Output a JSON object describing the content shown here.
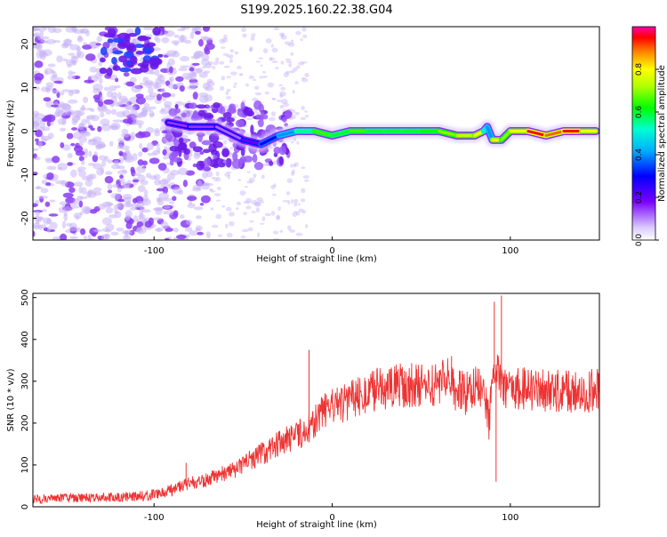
{
  "title": "S199.2025.160.22.38.G04",
  "chart_data": [
    {
      "type": "heatmap",
      "xlabel": "Height of straight line (km)",
      "ylabel": "Frequency (Hz)",
      "xlim": [
        -168,
        150
      ],
      "ylim": [
        -25,
        24
      ],
      "xticks": [
        -100,
        0,
        100
      ],
      "yticks": [
        -20,
        -10,
        0,
        10,
        20
      ],
      "colorbar": {
        "label": "Normalized spectral amplitude",
        "range": [
          0,
          1
        ],
        "ticks": [
          "0.0",
          "0.2",
          "0.4",
          "0.6",
          "0.8"
        ],
        "tick_values": [
          0,
          0.2,
          0.4,
          0.6,
          0.8
        ]
      },
      "ridge": {
        "x": [
          -92,
          -80,
          -65,
          -50,
          -40,
          -30,
          -20,
          -10,
          0,
          10,
          20,
          30,
          40,
          50,
          60,
          70,
          80,
          85,
          87,
          90,
          95,
          100,
          110,
          120,
          130,
          140,
          148
        ],
        "freq": [
          2,
          1,
          1,
          -2,
          -3,
          -1,
          0,
          0,
          -1,
          0,
          0,
          0,
          0,
          0,
          0,
          -1,
          -1,
          0,
          1,
          -2,
          -2,
          0,
          0,
          -1,
          0,
          0,
          0
        ],
        "amplitude": [
          0.15,
          0.15,
          0.12,
          0.2,
          0.3,
          0.4,
          0.55,
          0.65,
          0.6,
          0.65,
          0.6,
          0.6,
          0.6,
          0.62,
          0.7,
          0.75,
          0.8,
          0.5,
          0.4,
          0.8,
          0.7,
          0.8,
          0.95,
          0.9,
          0.95,
          0.8,
          0.6
        ]
      }
    },
    {
      "type": "line",
      "xlabel": "Height of straight line (km)",
      "ylabel": "SNR (10 * v/v)",
      "xlim": [
        -168,
        150
      ],
      "ylim": [
        0,
        510
      ],
      "xticks": [
        -100,
        0,
        100
      ],
      "yticks": [
        0,
        100,
        200,
        300,
        400,
        500
      ],
      "series": [
        {
          "color": "#ee3333",
          "x": [
            -168,
            -150,
            -130,
            -110,
            -100,
            -90,
            -80,
            -70,
            -60,
            -50,
            -40,
            -30,
            -20,
            -15,
            -10,
            -5,
            0,
            5,
            10,
            20,
            30,
            40,
            50,
            60,
            65,
            70,
            75,
            80,
            85,
            88,
            90,
            92,
            94,
            96,
            100,
            110,
            120,
            130,
            140,
            150
          ],
          "y": [
            18,
            20,
            22,
            24,
            30,
            40,
            55,
            65,
            80,
            100,
            125,
            150,
            170,
            180,
            200,
            225,
            240,
            245,
            255,
            275,
            285,
            290,
            290,
            295,
            300,
            280,
            270,
            290,
            290,
            200,
            320,
            340,
            300,
            285,
            285,
            280,
            280,
            275,
            275,
            280
          ],
          "spikes": [
            {
              "x": -82,
              "y": 105
            },
            {
              "x": -13,
              "y": 375
            },
            {
              "x": 67,
              "y": 360
            },
            {
              "x": 91,
              "y": 490
            },
            {
              "x": 92,
              "y": 60
            },
            {
              "x": 95,
              "y": 505
            }
          ]
        }
      ]
    }
  ]
}
